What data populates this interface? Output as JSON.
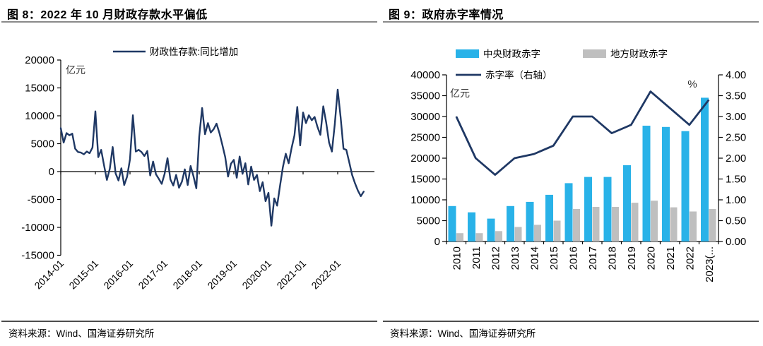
{
  "left_panel": {
    "title": "图 8：2022 年 10 月财政存款水平偏低",
    "source": "资料来源：Wind、国海证券研究所"
  },
  "right_panel": {
    "title": "图 9：政府赤字率情况",
    "source": "资料来源：Wind、国海证券研究所"
  },
  "chart_data": [
    {
      "type": "line",
      "title": "图 8：2022 年 10 月财政存款水平偏低",
      "legend": [
        "财政性存款:同比增加"
      ],
      "legend_position": "top-center",
      "unit_label": "亿元",
      "line_color": "#1F3864",
      "ylim": [
        -15000,
        20000
      ],
      "ytick_step": 5000,
      "y_tick_labels": [
        "20000",
        "15000",
        "10000",
        "5000",
        "0",
        "-5000",
        "-10000",
        "-15000"
      ],
      "x_tick_labels": [
        "2014-01",
        "2015-01",
        "2016-01",
        "2017-01",
        "2018-01",
        "2019-01",
        "2020-01",
        "2021-01",
        "2022-01"
      ],
      "x_start": "2014-01",
      "x_end": "2022-10",
      "x_frequency": "monthly",
      "values": [
        7800,
        5200,
        6900,
        6500,
        6800,
        4100,
        3500,
        3400,
        3100,
        3600,
        3300,
        4300,
        10800,
        2600,
        3900,
        1100,
        -1500,
        500,
        4400,
        -300,
        -1600,
        600,
        -2400,
        -900,
        2200,
        10100,
        3600,
        3900,
        3500,
        2800,
        3700,
        -700,
        1800,
        -500,
        -1300,
        -2200,
        -400,
        2400,
        -1400,
        -2500,
        -600,
        -2900,
        -1800,
        400,
        -2400,
        1000,
        -800,
        -3000,
        6300,
        11400,
        6700,
        8700,
        7000,
        7600,
        8600,
        6900,
        4800,
        2600,
        -900,
        1400,
        2100,
        -1100,
        2700,
        -400,
        1500,
        -2300,
        900,
        -1500,
        -600,
        -3500,
        -1900,
        -5300,
        -3800,
        -9700,
        -4800,
        -6100,
        -2600,
        800,
        3200,
        1500,
        4200,
        6500,
        11600,
        4700,
        10600,
        8700,
        10100,
        9200,
        9800,
        8000,
        6600,
        11700,
        8800,
        5200,
        3600,
        8500,
        14700,
        9800,
        4100,
        3900,
        1700,
        -600,
        -2100,
        -3400,
        -4400,
        -3600
      ]
    },
    {
      "type": "bar",
      "title": "图 9：政府赤字率情况",
      "categories": [
        "2010",
        "2011",
        "2012",
        "2013",
        "2014",
        "2015",
        "2016",
        "2017",
        "2018",
        "2019",
        "2020",
        "2021",
        "2022",
        "2023(..."
      ],
      "series": [
        {
          "name": "中央财政赤字",
          "type": "bar",
          "axis": "left",
          "color": "#29B2E8",
          "values": [
            8500,
            7000,
            5500,
            8500,
            9500,
            11200,
            14000,
            15500,
            15500,
            18300,
            27800,
            27500,
            26500,
            34500
          ]
        },
        {
          "name": "地方财政赤字",
          "type": "bar",
          "axis": "left",
          "color": "#BFBFBF",
          "values": [
            2000,
            2000,
            2500,
            3500,
            4000,
            5000,
            7800,
            8300,
            8300,
            9300,
            9800,
            8200,
            7200,
            7800
          ]
        },
        {
          "name": "赤字率（右轴）",
          "type": "line",
          "axis": "right",
          "color": "#1F3864",
          "values": [
            3.0,
            2.0,
            1.6,
            2.0,
            2.1,
            2.3,
            3.0,
            3.0,
            2.6,
            2.8,
            3.6,
            3.2,
            2.8,
            3.4
          ]
        }
      ],
      "left_axis": {
        "unit_label": "亿元",
        "ylim": [
          0,
          40000
        ],
        "step": 5000,
        "tick_labels": [
          "40000",
          "35000",
          "30000",
          "25000",
          "20000",
          "15000",
          "10000",
          "5000",
          "0"
        ]
      },
      "right_axis": {
        "unit_label": "%",
        "ylim": [
          0,
          4
        ],
        "step": 0.5,
        "tick_labels": [
          "4.00",
          "3.50",
          "3.00",
          "2.50",
          "2.00",
          "1.50",
          "1.00",
          "0.50",
          "0.00"
        ]
      },
      "legend_position": "top-center"
    }
  ]
}
